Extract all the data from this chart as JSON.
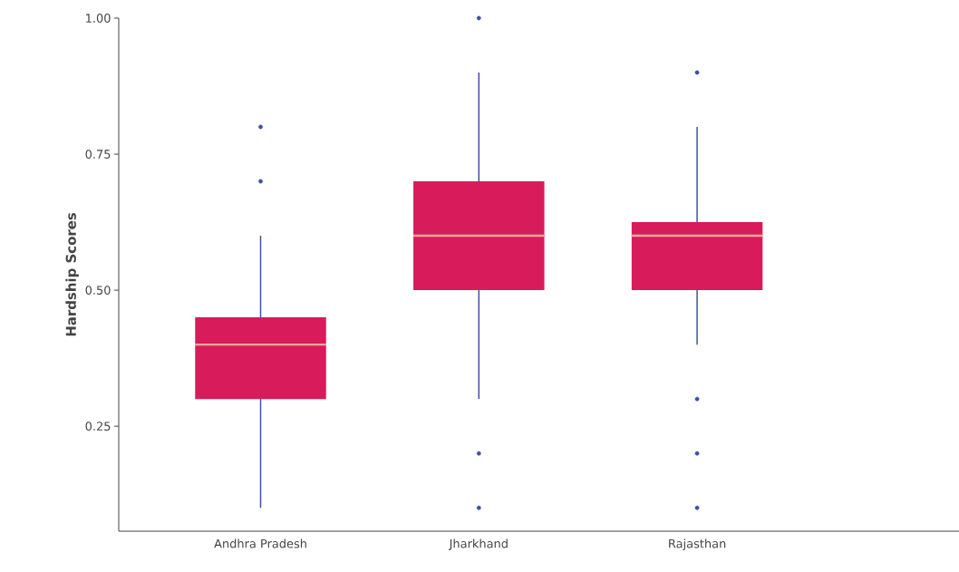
{
  "chart_data": {
    "type": "box",
    "ylabel": "Hardship Scores",
    "categories": [
      "Andhra Pradesh",
      "Jharkhand",
      "Rajasthan"
    ],
    "series": [
      {
        "color": "#d81b5a",
        "boxes": [
          {
            "low": 0.1,
            "q1": 0.3,
            "median": 0.4,
            "q3": 0.45,
            "high": 0.6,
            "outliers": [
              0.7,
              0.8
            ]
          },
          {
            "low": 0.3,
            "q1": 0.5,
            "median": 0.6,
            "q3": 0.7,
            "high": 0.9,
            "outliers": [
              1.0,
              0.2,
              0.1
            ]
          },
          {
            "low": 0.4,
            "q1": 0.5,
            "median": 0.6,
            "q3": 0.625,
            "high": 0.8,
            "outliers": [
              0.9,
              0.3,
              0.2,
              0.1
            ]
          }
        ]
      }
    ],
    "ylim": [
      0.057,
      1.0
    ],
    "yticks": [
      {
        "value": 0.25,
        "label": "0.25"
      },
      {
        "value": 0.5,
        "label": "0.50"
      },
      {
        "value": 0.75,
        "label": "0.75"
      },
      {
        "value": 1.0,
        "label": "1.00"
      }
    ],
    "grid": false
  }
}
